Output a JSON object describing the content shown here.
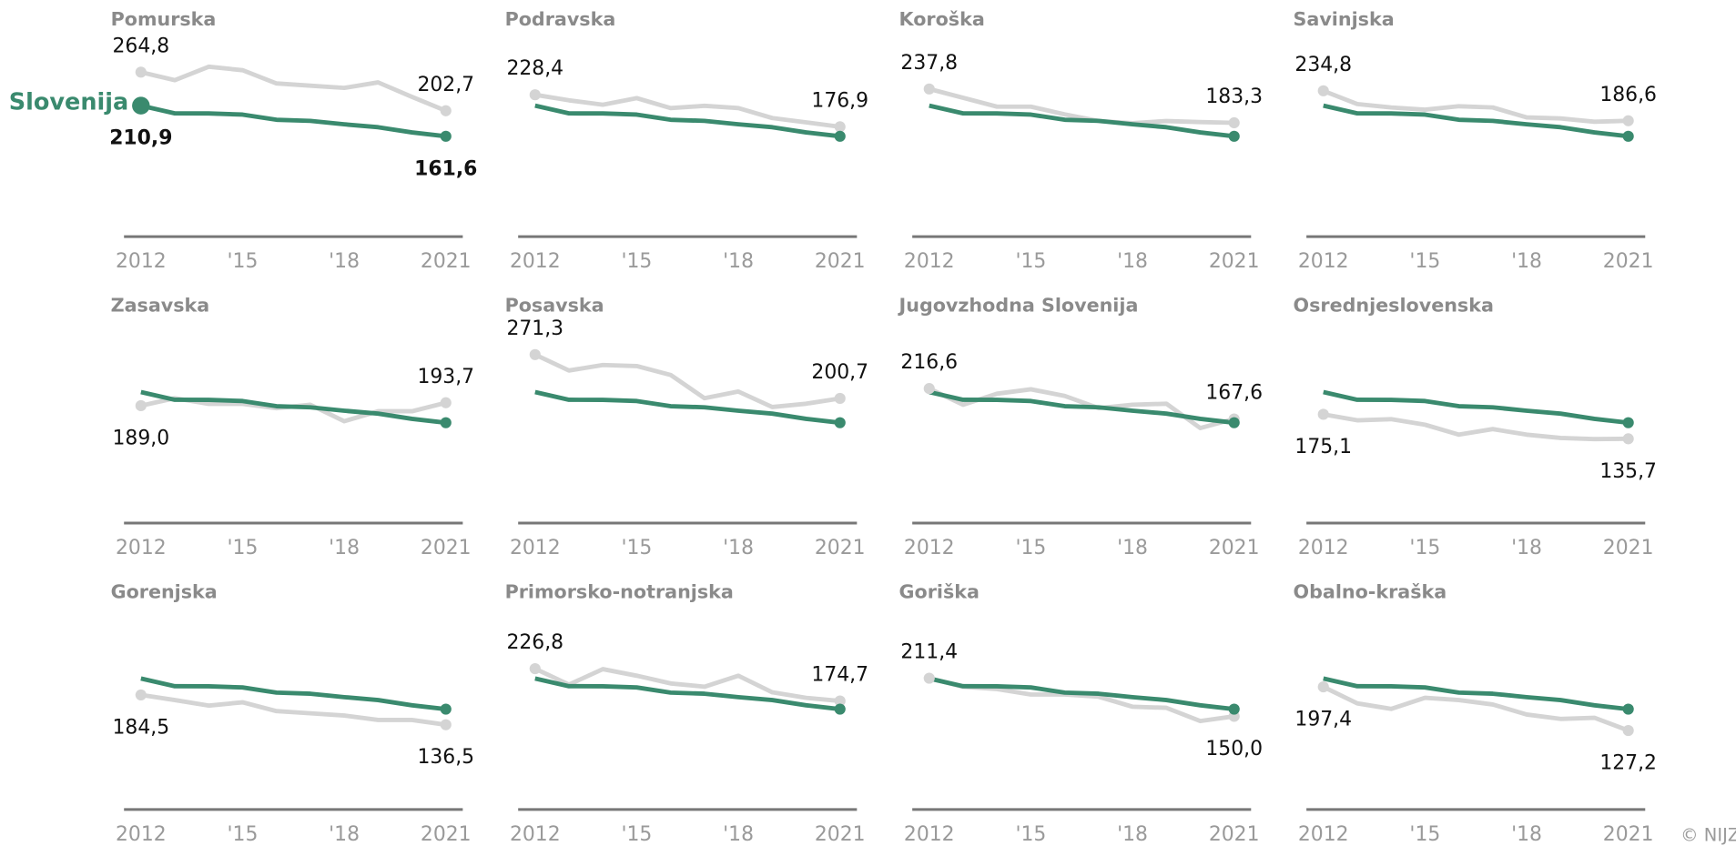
{
  "credit": "© NIJZ",
  "chart_data": [
    {
      "type": "line",
      "title": "Pomurska",
      "x": [
        2012,
        2013,
        2014,
        2015,
        2016,
        2017,
        2018,
        2019,
        2020,
        2021
      ],
      "xlim": [
        2011.5,
        2021.5
      ],
      "xticks": [
        2012,
        {
          "value": 2015,
          "label": "'15"
        },
        {
          "value": 2018,
          "label": "'18"
        },
        2021
      ],
      "ylim": [
        0,
        300
      ],
      "series": [
        {
          "name": "Slovenija",
          "color": "#3a8a6e",
          "values": [
            210.9,
            198.5,
            198.4,
            196.5,
            188.2,
            186.4,
            180.9,
            176.2,
            167.8,
            161.6
          ],
          "value_labels": [
            "210,9",
            null,
            null,
            null,
            null,
            null,
            null,
            null,
            null,
            "161,6"
          ]
        },
        {
          "color": "#d4d4d4",
          "values": [
            264.8,
            252.0,
            273.6,
            268.0,
            246.7,
            243.0,
            239.5,
            248.4,
            225.0,
            202.7
          ],
          "value_labels": [
            "264,8",
            null,
            null,
            null,
            null,
            null,
            null,
            null,
            null,
            "202,7"
          ]
        }
      ]
    },
    {
      "type": "line",
      "title": "Podravska",
      "x": [
        2012,
        2013,
        2014,
        2015,
        2016,
        2017,
        2018,
        2019,
        2020,
        2021
      ],
      "xlim": [
        2011.5,
        2021.5
      ],
      "xticks": [
        2012,
        {
          "value": 2015,
          "label": "'15"
        },
        {
          "value": 2018,
          "label": "'18"
        },
        2021
      ],
      "ylim": [
        0,
        300
      ],
      "series": [
        {
          "color": "#3a8a6e",
          "values": [
            210.9,
            198.5,
            198.4,
            196.5,
            188.2,
            186.4,
            180.9,
            176.2,
            167.8,
            161.6
          ]
        },
        {
          "color": "#d4d4d4",
          "values": [
            228.4,
            219.5,
            212.4,
            223.0,
            207.0,
            210.6,
            207.0,
            191.0,
            184.0,
            176.9
          ],
          "value_labels": [
            "228,4",
            null,
            null,
            null,
            null,
            null,
            null,
            null,
            null,
            "176,9"
          ]
        }
      ]
    },
    {
      "type": "line",
      "title": "Koroška",
      "x": [
        2012,
        2013,
        2014,
        2015,
        2016,
        2017,
        2018,
        2019,
        2020,
        2021
      ],
      "xlim": [
        2011.5,
        2021.5
      ],
      "xticks": [
        2012,
        {
          "value": 2015,
          "label": "'15"
        },
        {
          "value": 2018,
          "label": "'18"
        },
        2021
      ],
      "ylim": [
        0,
        300
      ],
      "series": [
        {
          "color": "#3a8a6e",
          "values": [
            210.9,
            198.5,
            198.4,
            196.5,
            188.2,
            186.4,
            180.9,
            176.2,
            167.8,
            161.6
          ]
        },
        {
          "color": "#d4d4d4",
          "values": [
            237.8,
            223.6,
            209.3,
            209.3,
            196.9,
            186.2,
            182.7,
            186.2,
            184.5,
            183.3
          ],
          "value_labels": [
            "237,8",
            null,
            null,
            null,
            null,
            null,
            null,
            null,
            null,
            "183,3"
          ]
        }
      ]
    },
    {
      "type": "line",
      "title": "Savinjska",
      "x": [
        2012,
        2013,
        2014,
        2015,
        2016,
        2017,
        2018,
        2019,
        2020,
        2021
      ],
      "xlim": [
        2011.5,
        2021.5
      ],
      "xticks": [
        2012,
        {
          "value": 2015,
          "label": "'15"
        },
        {
          "value": 2018,
          "label": "'18"
        },
        2021
      ],
      "ylim": [
        0,
        300
      ],
      "series": [
        {
          "color": "#3a8a6e",
          "values": [
            210.9,
            198.5,
            198.4,
            196.5,
            188.2,
            186.4,
            180.9,
            176.2,
            167.8,
            161.6
          ]
        },
        {
          "color": "#d4d4d4",
          "values": [
            234.8,
            213.5,
            208.0,
            204.5,
            210.0,
            208.0,
            192.0,
            190.3,
            185.0,
            186.6
          ],
          "value_labels": [
            "234,8",
            null,
            null,
            null,
            null,
            null,
            null,
            null,
            null,
            "186,6"
          ]
        }
      ]
    },
    {
      "type": "line",
      "title": "Zasavska",
      "x": [
        2012,
        2013,
        2014,
        2015,
        2016,
        2017,
        2018,
        2019,
        2020,
        2021
      ],
      "xlim": [
        2011.5,
        2021.5
      ],
      "xticks": [
        2012,
        {
          "value": 2015,
          "label": "'15"
        },
        {
          "value": 2018,
          "label": "'18"
        },
        2021
      ],
      "ylim": [
        0,
        300
      ],
      "series": [
        {
          "color": "#3a8a6e",
          "values": [
            210.9,
            198.5,
            198.4,
            196.5,
            188.2,
            186.4,
            180.9,
            176.2,
            167.8,
            161.6
          ]
        },
        {
          "color": "#d4d4d4",
          "values": [
            189.0,
            201.0,
            192.0,
            192.0,
            185.0,
            190.5,
            164.0,
            180.0,
            180.0,
            193.7
          ],
          "value_labels": [
            "189,0",
            null,
            null,
            null,
            null,
            null,
            null,
            null,
            null,
            "193,7"
          ]
        }
      ]
    },
    {
      "type": "line",
      "title": "Posavska",
      "x": [
        2012,
        2013,
        2014,
        2015,
        2016,
        2017,
        2018,
        2019,
        2020,
        2021
      ],
      "xlim": [
        2011.5,
        2021.5
      ],
      "xticks": [
        2012,
        {
          "value": 2015,
          "label": "'15"
        },
        {
          "value": 2018,
          "label": "'18"
        },
        2021
      ],
      "ylim": [
        0,
        300
      ],
      "series": [
        {
          "color": "#3a8a6e",
          "values": [
            210.9,
            198.5,
            198.4,
            196.5,
            188.2,
            186.4,
            180.9,
            176.2,
            167.8,
            161.6
          ]
        },
        {
          "color": "#d4d4d4",
          "values": [
            271.3,
            245.6,
            254.5,
            252.8,
            238.5,
            201.1,
            211.8,
            186.9,
            192.2,
            200.7
          ],
          "value_labels": [
            "271,3",
            null,
            null,
            null,
            null,
            null,
            null,
            null,
            null,
            "200,7"
          ]
        }
      ]
    },
    {
      "type": "line",
      "title": "Jugovzhodna Slovenija",
      "x": [
        2012,
        2013,
        2014,
        2015,
        2016,
        2017,
        2018,
        2019,
        2020,
        2021
      ],
      "xlim": [
        2011.5,
        2021.5
      ],
      "xticks": [
        2012,
        {
          "value": 2015,
          "label": "'15"
        },
        {
          "value": 2018,
          "label": "'18"
        },
        2021
      ],
      "ylim": [
        0,
        300
      ],
      "series": [
        {
          "color": "#3a8a6e",
          "values": [
            210.9,
            198.5,
            198.4,
            196.5,
            188.2,
            186.4,
            180.9,
            176.2,
            167.8,
            161.6
          ]
        },
        {
          "color": "#d4d4d4",
          "values": [
            216.6,
            190.5,
            208.3,
            215.4,
            204.7,
            185.1,
            190.5,
            192.2,
            153.0,
            167.6
          ],
          "value_labels": [
            "216,6",
            null,
            null,
            null,
            null,
            null,
            null,
            null,
            null,
            "167,6"
          ]
        }
      ]
    },
    {
      "type": "line",
      "title": "Osrednjeslovenska",
      "x": [
        2012,
        2013,
        2014,
        2015,
        2016,
        2017,
        2018,
        2019,
        2020,
        2021
      ],
      "xlim": [
        2011.5,
        2021.5
      ],
      "xticks": [
        2012,
        {
          "value": 2015,
          "label": "'15"
        },
        {
          "value": 2018,
          "label": "'18"
        },
        2021
      ],
      "ylim": [
        0,
        300
      ],
      "series": [
        {
          "color": "#3a8a6e",
          "values": [
            210.9,
            198.5,
            198.4,
            196.5,
            188.2,
            186.4,
            180.9,
            176.2,
            167.8,
            161.6
          ]
        },
        {
          "color": "#d4d4d4",
          "values": [
            175.1,
            165.5,
            167.3,
            158.4,
            142.4,
            151.3,
            142.4,
            137.0,
            135.3,
            135.7
          ],
          "value_labels": [
            "175,1",
            null,
            null,
            null,
            null,
            null,
            null,
            null,
            null,
            "135,7"
          ]
        }
      ]
    },
    {
      "type": "line",
      "title": "Gorenjska",
      "x": [
        2012,
        2013,
        2014,
        2015,
        2016,
        2017,
        2018,
        2019,
        2020,
        2021
      ],
      "xlim": [
        2011.5,
        2021.5
      ],
      "xticks": [
        2012,
        {
          "value": 2015,
          "label": "'15"
        },
        {
          "value": 2018,
          "label": "'18"
        },
        2021
      ],
      "ylim": [
        0,
        300
      ],
      "series": [
        {
          "color": "#3a8a6e",
          "values": [
            210.9,
            198.5,
            198.4,
            196.5,
            188.2,
            186.4,
            180.9,
            176.2,
            167.8,
            161.6
          ]
        },
        {
          "color": "#d4d4d4",
          "values": [
            184.5,
            176.2,
            167.3,
            172.6,
            158.4,
            154.9,
            151.3,
            144.2,
            144.2,
            136.5
          ],
          "value_labels": [
            "184,5",
            null,
            null,
            null,
            null,
            null,
            null,
            null,
            null,
            "136,5"
          ]
        }
      ]
    },
    {
      "type": "line",
      "title": "Primorsko-notranjska",
      "x": [
        2012,
        2013,
        2014,
        2015,
        2016,
        2017,
        2018,
        2019,
        2020,
        2021
      ],
      "xlim": [
        2011.5,
        2021.5
      ],
      "xticks": [
        2012,
        {
          "value": 2015,
          "label": "'15"
        },
        {
          "value": 2018,
          "label": "'18"
        },
        2021
      ],
      "ylim": [
        0,
        300
      ],
      "series": [
        {
          "color": "#3a8a6e",
          "values": [
            210.9,
            198.5,
            198.4,
            196.5,
            188.2,
            186.4,
            180.9,
            176.2,
            167.8,
            161.6
          ]
        },
        {
          "color": "#d4d4d4",
          "values": [
            226.8,
            201.1,
            226.0,
            215.4,
            203.0,
            197.7,
            215.4,
            188.7,
            179.8,
            174.7
          ],
          "value_labels": [
            "226,8",
            null,
            null,
            null,
            null,
            null,
            null,
            null,
            null,
            "174,7"
          ]
        }
      ]
    },
    {
      "type": "line",
      "title": "Goriška",
      "x": [
        2012,
        2013,
        2014,
        2015,
        2016,
        2017,
        2018,
        2019,
        2020,
        2021
      ],
      "xlim": [
        2011.5,
        2021.5
      ],
      "xticks": [
        2012,
        {
          "value": 2015,
          "label": "'15"
        },
        {
          "value": 2018,
          "label": "'18"
        },
        2021
      ],
      "ylim": [
        0,
        300
      ],
      "series": [
        {
          "color": "#3a8a6e",
          "values": [
            210.9,
            198.5,
            198.4,
            196.5,
            188.2,
            186.4,
            180.9,
            176.2,
            167.8,
            161.6
          ]
        },
        {
          "color": "#d4d4d4",
          "values": [
            211.4,
            197.6,
            194.0,
            185.1,
            185.1,
            181.6,
            165.5,
            163.7,
            142.4,
            150.0
          ],
          "value_labels": [
            "211,4",
            null,
            null,
            null,
            null,
            null,
            null,
            null,
            null,
            "150,0"
          ]
        }
      ]
    },
    {
      "type": "line",
      "title": "Obalno-kraška",
      "x": [
        2012,
        2013,
        2014,
        2015,
        2016,
        2017,
        2018,
        2019,
        2020,
        2021
      ],
      "xlim": [
        2011.5,
        2021.5
      ],
      "xticks": [
        2012,
        {
          "value": 2015,
          "label": "'15"
        },
        {
          "value": 2018,
          "label": "'18"
        },
        2021
      ],
      "ylim": [
        0,
        300
      ],
      "series": [
        {
          "color": "#3a8a6e",
          "values": [
            210.9,
            198.5,
            198.4,
            196.5,
            188.2,
            186.4,
            180.9,
            176.2,
            167.8,
            161.6
          ]
        },
        {
          "color": "#d4d4d4",
          "values": [
            197.4,
            170.9,
            162.0,
            179.8,
            176.2,
            169.1,
            153.0,
            145.9,
            147.7,
            127.2
          ],
          "value_labels": [
            "197,4",
            null,
            null,
            null,
            null,
            null,
            null,
            null,
            null,
            "127,2"
          ]
        }
      ]
    }
  ]
}
